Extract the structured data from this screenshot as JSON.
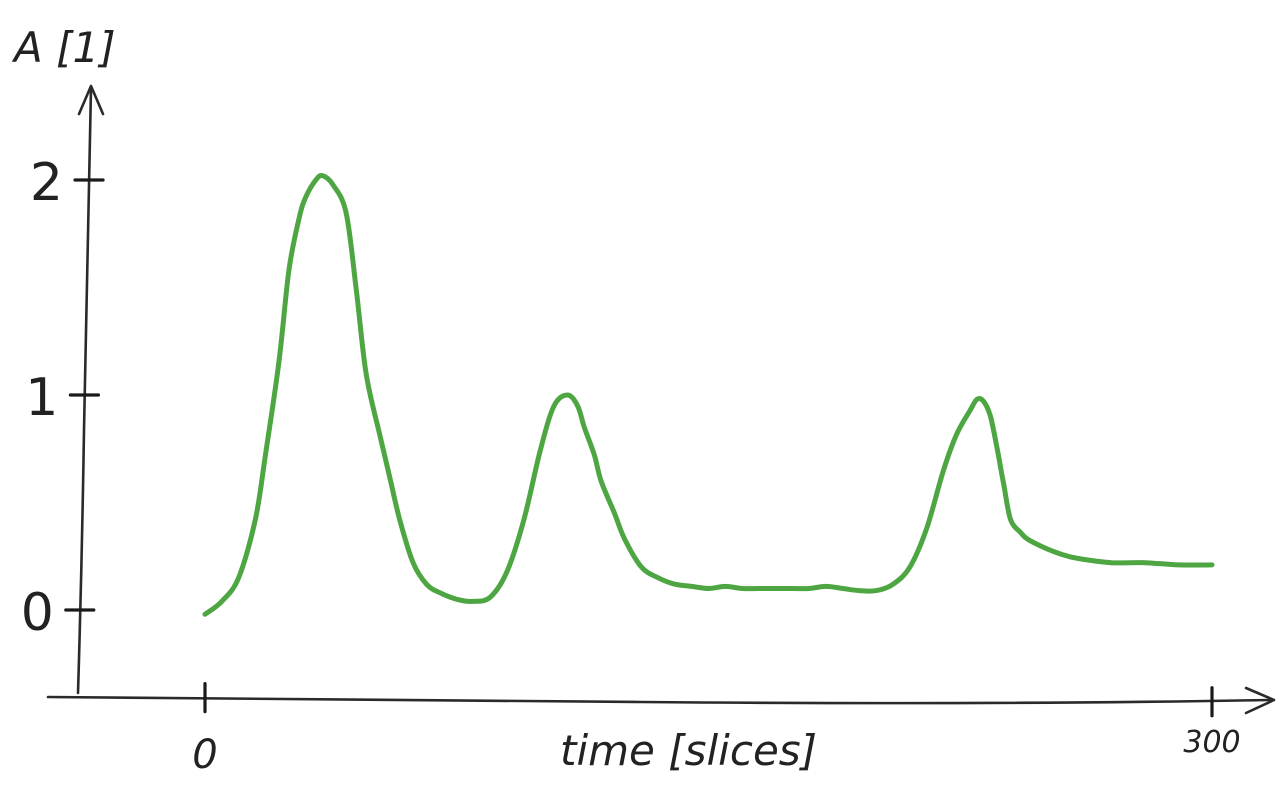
{
  "chart_data": {
    "type": "line",
    "title": "",
    "xlabel": "time [slices]",
    "ylabel": "A [1]",
    "xlim": [
      0,
      300
    ],
    "ylim": [
      0,
      2
    ],
    "x_ticks": [
      {
        "value": 0,
        "label": "0"
      },
      {
        "value": 300,
        "label": "300"
      }
    ],
    "y_ticks": [
      {
        "value": 0,
        "label": "0"
      },
      {
        "value": 1,
        "label": "1"
      },
      {
        "value": 2,
        "label": "2"
      }
    ],
    "grid": false,
    "legend": "none",
    "series": [
      {
        "color": "#3f9e33",
        "x": [
          0,
          5,
          10,
          15,
          18,
          22,
          25,
          28,
          30,
          33,
          35,
          38,
          42,
          45,
          48,
          52,
          55,
          58,
          62,
          66,
          70,
          75,
          80,
          85,
          90,
          95,
          100,
          104,
          108,
          111,
          113,
          116,
          118,
          122,
          125,
          130,
          135,
          140,
          145,
          150,
          155,
          160,
          165,
          170,
          175,
          180,
          185,
          190,
          195,
          200,
          205,
          210,
          215,
          220,
          224,
          228,
          230,
          232,
          234,
          236,
          238,
          240,
          243,
          245,
          250,
          255,
          260,
          270,
          280,
          290,
          300
        ],
        "y": [
          -0.02,
          0.04,
          0.15,
          0.42,
          0.72,
          1.15,
          1.58,
          1.82,
          1.92,
          2.0,
          2.02,
          1.98,
          1.85,
          1.5,
          1.1,
          0.82,
          0.62,
          0.42,
          0.22,
          0.12,
          0.08,
          0.05,
          0.04,
          0.06,
          0.18,
          0.42,
          0.75,
          0.95,
          1.0,
          0.95,
          0.85,
          0.72,
          0.6,
          0.45,
          0.33,
          0.2,
          0.15,
          0.12,
          0.11,
          0.1,
          0.11,
          0.1,
          0.1,
          0.1,
          0.1,
          0.1,
          0.11,
          0.1,
          0.09,
          0.09,
          0.12,
          0.2,
          0.38,
          0.65,
          0.82,
          0.93,
          0.98,
          0.97,
          0.9,
          0.75,
          0.58,
          0.42,
          0.36,
          0.33,
          0.29,
          0.26,
          0.24,
          0.22,
          0.22,
          0.21,
          0.21
        ]
      }
    ]
  }
}
